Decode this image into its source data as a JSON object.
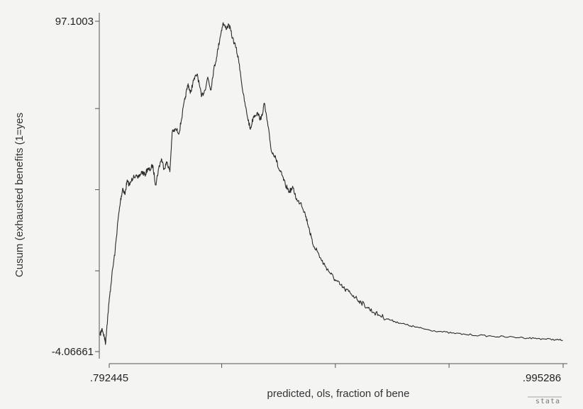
{
  "chart_data": {
    "type": "line",
    "title": "",
    "xlabel": "predicted, ols, fraction of bene",
    "ylabel": "Cusum (exhausted benefits (1=yes",
    "xlim": [
      0.792445,
      0.995286
    ],
    "ylim": [
      -4.06661,
      97.1003
    ],
    "x_tick_labels": [
      ".792445",
      ".995286"
    ],
    "y_tick_labels": [
      "97.1003",
      "-4.06661"
    ],
    "x_tick_values": [
      0.792445,
      0.8427,
      0.8935,
      0.9443,
      0.995286
    ],
    "y_tick_values": [
      -4.06661,
      20.67,
      45.52,
      70.37,
      97.1003
    ],
    "grid": false,
    "watermark": "stata",
    "series": [
      {
        "x": [
          0.7928,
          0.7937,
          0.7946,
          0.7952,
          0.7958,
          0.7967,
          0.7979,
          0.7994,
          0.8006,
          0.8017,
          0.8027,
          0.8037,
          0.8045,
          0.8058,
          0.8075,
          0.8093,
          0.8111,
          0.8124,
          0.8136,
          0.8145,
          0.8158,
          0.8171,
          0.8184,
          0.8196,
          0.8208,
          0.8221,
          0.8233,
          0.8243,
          0.8259,
          0.8274,
          0.8288,
          0.8301,
          0.8313,
          0.8322,
          0.8337,
          0.8353,
          0.8371,
          0.8386,
          0.8399,
          0.8412,
          0.8424,
          0.8437,
          0.8452,
          0.8465,
          0.8478,
          0.8492,
          0.8507,
          0.8522,
          0.8537,
          0.8553,
          0.8569,
          0.8585,
          0.8599,
          0.8614,
          0.8632,
          0.8646,
          0.8662,
          0.8678,
          0.8694,
          0.8708,
          0.8723,
          0.8738,
          0.8755,
          0.8772,
          0.879,
          0.8807,
          0.8825,
          0.8841,
          0.8857,
          0.8876,
          0.8895,
          0.8914,
          0.8934,
          0.8955,
          0.8976,
          0.8998,
          0.9021,
          0.9045,
          0.907,
          0.9096,
          0.9124,
          0.9152,
          0.9182,
          0.9214,
          0.9249,
          0.9286,
          0.9324,
          0.9365,
          0.9412,
          0.9466,
          0.9524,
          0.9586,
          0.9649,
          0.9714,
          0.9777,
          0.9826,
          0.9873,
          0.992,
          0.9951
        ],
        "y": [
          1.0,
          3.0,
          0.5,
          -1.5,
          4.0,
          11.0,
          19.0,
          27.0,
          36.0,
          42.0,
          46.0,
          44.0,
          48.0,
          47.0,
          50.0,
          49.0,
          51.0,
          50.0,
          52.0,
          51.5,
          53.0,
          47.0,
          52.0,
          55.0,
          52.0,
          54.0,
          51.0,
          63.0,
          64.0,
          63.0,
          69.0,
          74.0,
          78.0,
          75.0,
          79.0,
          81.0,
          74.0,
          76.0,
          80.0,
          76.0,
          82.0,
          86.0,
          92.0,
          96.5,
          95.0,
          96.0,
          92.0,
          89.0,
          84.0,
          75.0,
          69.0,
          64.0,
          68.0,
          69.0,
          67.0,
          72.0,
          65.0,
          57.0,
          56.0,
          52.0,
          50.0,
          47.0,
          45.0,
          46.0,
          42.0,
          41.5,
          38.0,
          34.0,
          29.0,
          27.0,
          24.0,
          22.0,
          20.0,
          18.0,
          16.5,
          15.0,
          14.0,
          12.5,
          11.0,
          9.5,
          8.0,
          7.0,
          6.0,
          5.2,
          4.5,
          3.8,
          3.2,
          2.6,
          2.1,
          1.6,
          1.2,
          0.9,
          0.6,
          0.4,
          0.2,
          0.0,
          -0.2,
          -0.4,
          -0.6
        ]
      }
    ]
  }
}
